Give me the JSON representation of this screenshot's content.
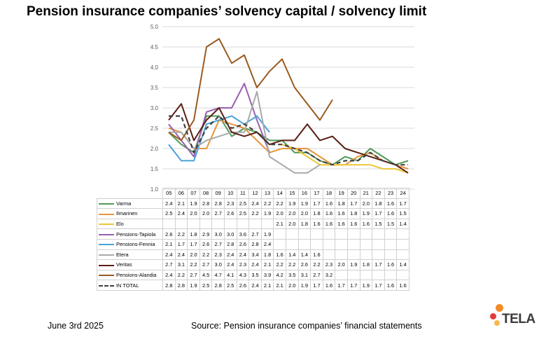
{
  "title": "Pension insurance companies’ solvency capital / solvency limit",
  "footer": {
    "date": "June 3rd 2025",
    "source": "Source: Pension insurance companies’ financial statements"
  },
  "logo": {
    "text": "TELA",
    "colors": [
      "#f28c28",
      "#e23b3b",
      "#f7b84b"
    ]
  },
  "chart_data": {
    "type": "line",
    "title": "Pension insurance companies’ solvency capital / solvency limit",
    "categories": [
      "05",
      "06",
      "07",
      "08",
      "09",
      "10",
      "11",
      "12",
      "13",
      "14",
      "15",
      "16",
      "17",
      "18",
      "19",
      "20",
      "21",
      "22",
      "23",
      "24"
    ],
    "ylim": [
      1.0,
      5.0
    ],
    "yticks": [
      "1.0",
      "1.5",
      "2.0",
      "2.5",
      "3.0",
      "3.5",
      "4.0",
      "4.5",
      "5.0"
    ],
    "grid": true,
    "legend": "data-table",
    "series": [
      {
        "name": "Varma",
        "color": "#4e9a57",
        "dashed": false,
        "values": [
          2.4,
          2.1,
          1.9,
          2.8,
          2.8,
          2.3,
          2.5,
          2.4,
          2.2,
          2.2,
          1.9,
          1.9,
          1.7,
          1.6,
          1.8,
          1.7,
          2.0,
          1.8,
          1.6,
          1.7
        ],
        "labels": [
          "2.4",
          "2.1",
          "1.9",
          "2.8",
          "2.8",
          "2.3",
          "2.5",
          "2.4",
          "2.2",
          "2.2",
          "1.9",
          "1.9",
          "1.7",
          "1.6",
          "1.8",
          "1.7",
          "2.0",
          "1.8",
          "1.6",
          "1.7"
        ]
      },
      {
        "name": "Ilmarinen",
        "color": "#e8953a",
        "dashed": false,
        "values": [
          2.5,
          2.4,
          2.0,
          2.0,
          2.7,
          2.6,
          2.5,
          2.2,
          1.9,
          2.0,
          2.0,
          2.0,
          1.8,
          1.6,
          1.6,
          1.8,
          1.9,
          1.7,
          1.6,
          1.5
        ],
        "labels": [
          "2.5",
          "2.4",
          "2.0",
          "2.0",
          "2.7",
          "2.6",
          "2.5",
          "2.2",
          "1.9",
          "2.0",
          "2.0",
          "2.0",
          "1.8",
          "1.6",
          "1.6",
          "1.8",
          "1.9",
          "1.7",
          "1.6",
          "1.5"
        ]
      },
      {
        "name": "Elo",
        "color": "#ecc63a",
        "dashed": false,
        "values": [
          null,
          null,
          null,
          null,
          null,
          null,
          null,
          null,
          null,
          2.1,
          2.0,
          1.8,
          1.6,
          1.6,
          1.6,
          1.6,
          1.6,
          1.5,
          1.5,
          1.4
        ],
        "labels": [
          "",
          "",
          "",
          "",
          "",
          "",
          "",
          "",
          "",
          "2.1",
          "2.0",
          "1.8",
          "1.6",
          "1.6",
          "1.6",
          "1.6",
          "1.6",
          "1.5",
          "1.5",
          "1.4"
        ]
      },
      {
        "name": "Pensions-Tapiola",
        "color": "#9a5fb0",
        "dashed": false,
        "values": [
          2.6,
          2.2,
          1.8,
          2.9,
          3.0,
          3.0,
          3.6,
          2.7,
          1.9,
          null,
          null,
          null,
          null,
          null,
          null,
          null,
          null,
          null,
          null,
          null
        ],
        "labels": [
          "2.6",
          "2.2",
          "1.8",
          "2.9",
          "3.0",
          "3.0",
          "3.6",
          "2.7",
          "1.9",
          "",
          "",
          "",
          "",
          "",
          "",
          "",
          "",
          "",
          "",
          ""
        ]
      },
      {
        "name": "Pensions-Fennia",
        "color": "#4aa3d8",
        "dashed": false,
        "values": [
          2.1,
          1.7,
          1.7,
          2.6,
          2.7,
          2.8,
          2.6,
          2.8,
          2.4,
          null,
          null,
          null,
          null,
          null,
          null,
          null,
          null,
          null,
          null,
          null
        ],
        "labels": [
          "2.1",
          "1.7",
          "1.7",
          "2.6",
          "2.7",
          "2.8",
          "2.6",
          "2.8",
          "2.4",
          "",
          "",
          "",
          "",
          "",
          "",
          "",
          "",
          "",
          "",
          ""
        ]
      },
      {
        "name": "Etera",
        "color": "#a9a9a9",
        "dashed": false,
        "values": [
          2.4,
          2.4,
          2.0,
          2.2,
          2.3,
          2.4,
          2.4,
          3.4,
          1.8,
          1.6,
          1.4,
          1.4,
          1.6,
          null,
          null,
          null,
          null,
          null,
          null,
          null
        ],
        "labels": [
          "2.4",
          "2.4",
          "2.0",
          "2.2",
          "2.3",
          "2.4",
          "2.4",
          "3.4",
          "1.8",
          "1.6",
          "1.4",
          "1.4",
          "1.6",
          "",
          "",
          "",
          "",
          "",
          "",
          ""
        ]
      },
      {
        "name": "Veritas",
        "color": "#5a1e14",
        "dashed": false,
        "values": [
          2.7,
          3.1,
          2.2,
          2.7,
          3.0,
          2.4,
          2.3,
          2.4,
          2.1,
          2.2,
          2.2,
          2.6,
          2.2,
          2.3,
          2.0,
          1.9,
          1.8,
          1.7,
          1.6,
          1.4
        ],
        "labels": [
          "2.7",
          "3.1",
          "2.2",
          "2.7",
          "3.0",
          "2.4",
          "2.3",
          "2.4",
          "2.1",
          "2.2",
          "2.2",
          "2.6",
          "2.2",
          "2.3",
          "2.0",
          "1.9",
          "1.8",
          "1.7",
          "1.6",
          "1.4"
        ]
      },
      {
        "name": "Pensions-Alandia",
        "color": "#9a5a1e",
        "dashed": false,
        "values": [
          2.4,
          2.2,
          2.7,
          4.5,
          4.7,
          4.1,
          4.3,
          3.5,
          3.9,
          4.2,
          3.5,
          3.1,
          2.7,
          3.2,
          null,
          null,
          null,
          null,
          null,
          null
        ],
        "labels": [
          "2.4",
          "2.2",
          "2.7",
          "4.5",
          "4.7",
          "4.1",
          "4.3",
          "3.5",
          "3.9",
          "4.2",
          "3.5",
          "3.1",
          "2.7",
          "3.2",
          "",
          "",
          "",
          "",
          "",
          ""
        ]
      },
      {
        "name": "IN TOTAL",
        "color": "#404040",
        "dashed": true,
        "values": [
          2.8,
          2.8,
          1.9,
          2.5,
          2.8,
          2.5,
          2.6,
          2.4,
          2.1,
          2.1,
          2.0,
          1.9,
          1.7,
          1.6,
          1.7,
          1.7,
          1.9,
          1.7,
          1.6,
          1.6
        ],
        "labels": [
          "2.8",
          "2.8",
          "1.9",
          "2.5",
          "2.8",
          "2.5",
          "2.6",
          "2.4",
          "2.1",
          "2.1",
          "2.0",
          "1.9",
          "1.7",
          "1.6",
          "1.7",
          "1.7",
          "1.9",
          "1.7",
          "1.6",
          "1.6"
        ]
      }
    ]
  }
}
